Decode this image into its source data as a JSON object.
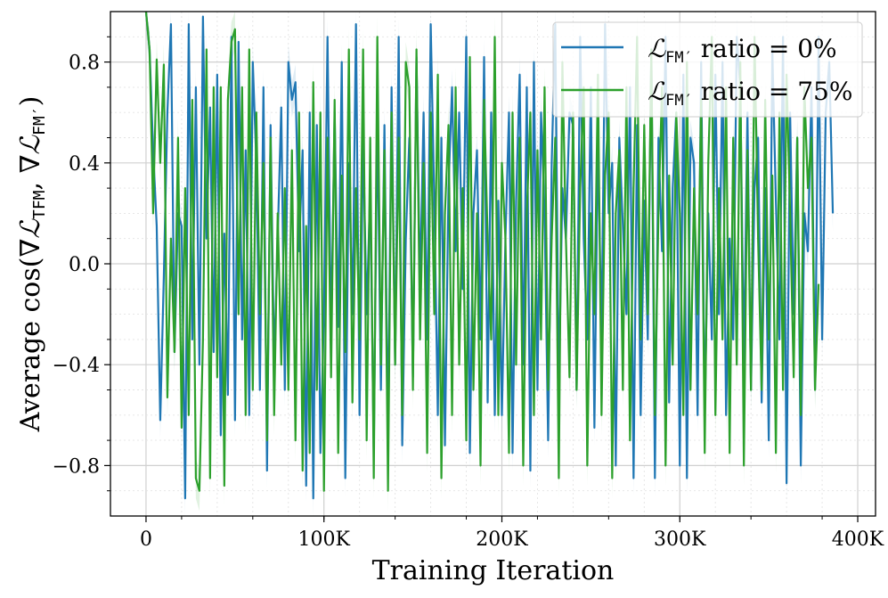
{
  "chart_data": {
    "type": "line",
    "title": "",
    "xlabel": "Training Iteration",
    "ylabel": "Average cos(∇ℒTFM, ∇ℒFM′)",
    "ylabel_parts": {
      "prefix": "Average cos(∇",
      "script": "ℒ",
      "sub1": "TFM",
      "sep": ", ∇",
      "sub2": "FM′",
      "suffix": ")"
    },
    "xlim": [
      -20000,
      410000
    ],
    "ylim": [
      -1.0,
      1.0
    ],
    "x_ticks": [
      0,
      100000,
      200000,
      300000,
      400000
    ],
    "x_tick_labels": [
      "0",
      "100K",
      "200K",
      "300K",
      "400K"
    ],
    "y_ticks": [
      -0.8,
      -0.4,
      0.0,
      0.4,
      0.8
    ],
    "y_tick_labels": [
      "−0.8",
      "−0.4",
      "0.0",
      "0.4",
      "0.8"
    ],
    "x_minor_step": 20000,
    "y_minor_step": 0.1,
    "grid": true,
    "legend_position": "top-right",
    "series": [
      {
        "name": "ℒFM′ ratio = 0%",
        "legend": {
          "script": "ℒ",
          "sub": "FM′",
          "text": " ratio = 0%"
        },
        "color": "#1f77b4",
        "band_color": "#1f77b4",
        "x_start": 0,
        "x_step": 2000,
        "values": [
          1.0,
          0.85,
          0.45,
          0.15,
          -0.62,
          -0.05,
          0.6,
          0.95,
          -0.35,
          0.2,
          0.15,
          -0.93,
          0.95,
          -0.3,
          0.7,
          -0.4,
          0.98,
          0.1,
          0.62,
          -0.35,
          0.75,
          -0.68,
          0.12,
          -0.52,
          0.9,
          -0.62,
          0.88,
          -0.3,
          0.45,
          -0.6,
          0.8,
          0.4,
          -0.5,
          0.7,
          -0.82,
          0.55,
          -0.4,
          0.1,
          0.62,
          -0.5,
          0.8,
          0.65,
          0.72,
          0.05,
          0.45,
          -0.88,
          0.6,
          -0.93,
          0.55,
          -0.75,
          -0.2,
          0.9,
          -0.3,
          0.6,
          -0.25,
          0.8,
          -0.85,
          0.4,
          -0.2,
          0.95,
          -0.6,
          0.5,
          -0.2,
          0.3,
          -0.75,
          0.6,
          -0.5,
          0.55,
          -0.7,
          0.7,
          -0.4,
          0.9,
          -0.72,
          0.1,
          0.5,
          -0.45,
          0.82,
          -0.1,
          0.6,
          -0.3,
          0.95,
          0.25,
          -0.6,
          0.5,
          -0.72,
          0.3,
          0.7,
          0.05,
          0.6,
          -0.1,
          0.9,
          -0.75,
          0.2,
          0.45,
          -0.3,
          0.82,
          -0.55,
          0.6,
          -0.6,
          0.25,
          -0.6,
          0.1,
          0.6,
          -0.75,
          0.25,
          0.75,
          -0.4,
          0.7,
          -0.82,
          0.8,
          -0.5,
          0.6,
          0.2,
          -0.7,
          0.4,
          0.95,
          -0.5,
          0.3,
          0.1,
          0.6,
          0.55,
          -0.5,
          0.9,
          0.1,
          -0.3,
          0.7,
          -0.65,
          0.5,
          -0.3,
          0.95,
          0.2,
          0.4,
          -0.8,
          0.5,
          0.15,
          -0.2,
          0.7,
          -0.85,
          0.55,
          -0.6,
          0.25,
          -0.3,
          0.85,
          -0.85,
          0.5,
          0.05,
          0.9,
          -0.55,
          0.3,
          0.6,
          -0.8,
          0.75,
          -0.85,
          0.5,
          0.4,
          -0.6,
          0.8,
          -0.6,
          0.2,
          -0.3,
          0.75,
          -0.2,
          0.8,
          -0.6,
          0.1,
          -0.3,
          0.9,
          0.7,
          -0.4,
          0.6,
          -0.5,
          0.3,
          0.5,
          -0.55,
          0.3,
          -0.7,
          0.85,
          0.25,
          -0.3,
          0.9,
          -0.87,
          0.6,
          -0.2,
          0.5,
          -0.8,
          0.2,
          0.05,
          0.7,
          -0.5,
          0.9,
          -0.3,
          0.6,
          0.8,
          0.2
        ],
        "band_width": 0.07
      },
      {
        "name": "ℒFM′ ratio = 75%",
        "legend": {
          "script": "ℒ",
          "sub": "FM′",
          "text": " ratio = 75%"
        },
        "color": "#2ca02c",
        "band_color": "#2ca02c",
        "x_start": 0,
        "x_step": 2000,
        "values": [
          1.0,
          0.85,
          0.2,
          0.81,
          0.4,
          0.79,
          -0.53,
          0.1,
          -0.35,
          0.5,
          -0.65,
          0.3,
          -0.6,
          0.65,
          -0.85,
          -0.9,
          -0.3,
          0.85,
          -0.85,
          0.7,
          -0.45,
          0.7,
          -0.88,
          0.65,
          0.88,
          0.93,
          -0.2,
          0.7,
          -0.6,
          0.85,
          -0.5,
          0.6,
          -0.2,
          0.4,
          -0.7,
          0.5,
          -0.6,
          0.2,
          -0.4,
          0.3,
          -0.5,
          0.45,
          -0.7,
          0.6,
          -0.82,
          0.15,
          -0.75,
          0.72,
          -0.5,
          0.6,
          -0.9,
          0.5,
          -0.45,
          0.65,
          -0.75,
          0.35,
          -0.35,
          0.85,
          -0.55,
          0.3,
          -0.3,
          0.85,
          -0.7,
          0.5,
          -0.85,
          0.9,
          -0.4,
          0.45,
          -0.9,
          0.6,
          -0.4,
          0.5,
          -0.6,
          0.8,
          0.7,
          -0.5,
          0.85,
          -0.3,
          0.4,
          -0.75,
          0.6,
          -0.2,
          0.75,
          -0.85,
          0.2,
          0.55,
          -0.6,
          0.7,
          -0.4,
          0.3,
          -0.7,
          0.82,
          -0.5,
          0.2,
          -0.8,
          0.65,
          0.1,
          -0.3,
          0.9,
          -0.6,
          0.4,
          0.1,
          -0.75,
          0.6,
          -0.4,
          0.5,
          -0.8,
          0.2,
          0.6,
          -0.6,
          0.45,
          -0.3,
          0.7,
          -0.5,
          0.1,
          0.5,
          -0.85,
          0.8,
          0.1,
          -0.45,
          0.6,
          -0.5,
          0.3,
          0.7,
          -0.8,
          0.2,
          -0.2,
          0.75,
          -0.6,
          0.35,
          0.6,
          -0.85,
          0.2,
          0.45,
          -0.5,
          0.7,
          -0.7,
          0.3,
          0.9,
          -0.3,
          0.55,
          -0.2,
          0.85,
          -0.6,
          0.2,
          0.7,
          -0.8,
          0.35,
          -0.4,
          0.6,
          0.2,
          -0.6,
          0.8,
          -0.5,
          0.3,
          -0.2,
          0.65,
          -0.75,
          0.4,
          0.9,
          -0.6,
          0.3,
          -0.3,
          0.7,
          -0.75,
          0.5,
          -0.4,
          0.8,
          -0.8,
          0.45,
          -0.5,
          0.9,
          0.1,
          -0.5,
          0.65,
          -0.3,
          0.35,
          -0.75,
          0.6,
          -0.5,
          0.75,
          0.2,
          -0.45,
          0.5,
          -0.6,
          0.7,
          0.3,
          0.5,
          -0.5,
          -0.08
        ],
        "band_width": 0.08
      }
    ]
  }
}
